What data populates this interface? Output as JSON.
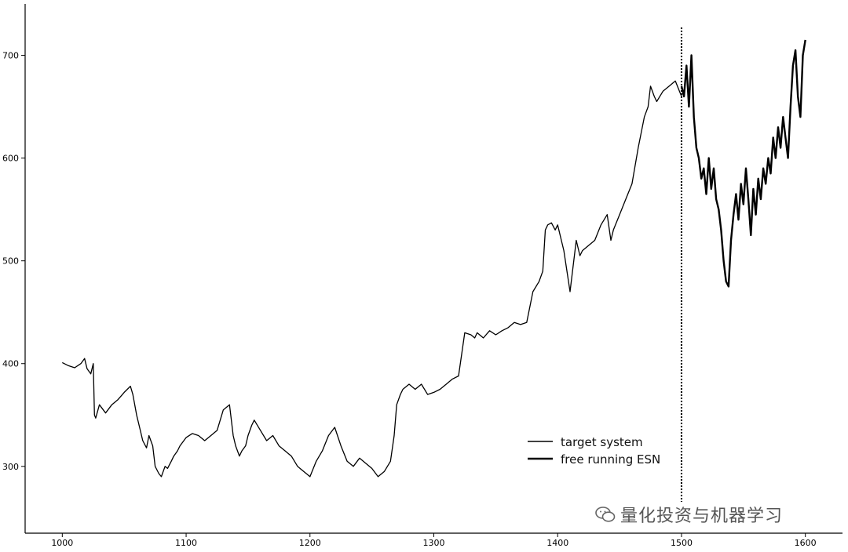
{
  "chart_data": {
    "type": "line",
    "title": "",
    "xlabel": "",
    "ylabel": "",
    "xlim": [
      970,
      1630
    ],
    "ylim": [
      235,
      750
    ],
    "xticks": [
      1000,
      1100,
      1200,
      1300,
      1400,
      1500,
      1600
    ],
    "yticks": [
      300,
      400,
      500,
      600,
      700
    ],
    "vline": {
      "x": 1500,
      "style": "dotted"
    },
    "legend": {
      "position": "bottom-center"
    },
    "series": [
      {
        "name": "target system",
        "x": [
          1000,
          1005,
          1010,
          1015,
          1018,
          1020,
          1023,
          1025,
          1026,
          1027,
          1030,
          1035,
          1040,
          1045,
          1050,
          1055,
          1057,
          1060,
          1063,
          1065,
          1068,
          1070,
          1073,
          1075,
          1078,
          1080,
          1083,
          1085,
          1088,
          1090,
          1093,
          1095,
          1100,
          1105,
          1110,
          1115,
          1120,
          1125,
          1130,
          1135,
          1138,
          1140,
          1143,
          1145,
          1148,
          1150,
          1153,
          1155,
          1160,
          1165,
          1170,
          1175,
          1180,
          1185,
          1190,
          1195,
          1200,
          1205,
          1210,
          1215,
          1220,
          1225,
          1230,
          1235,
          1240,
          1245,
          1250,
          1255,
          1260,
          1265,
          1268,
          1270,
          1273,
          1275,
          1278,
          1280,
          1285,
          1290,
          1295,
          1300,
          1305,
          1310,
          1315,
          1320,
          1325,
          1330,
          1333,
          1335,
          1340,
          1345,
          1350,
          1355,
          1360,
          1365,
          1370,
          1375,
          1380,
          1385,
          1388,
          1390,
          1392,
          1395,
          1398,
          1400,
          1405,
          1410,
          1415,
          1418,
          1420,
          1425,
          1430,
          1435,
          1440,
          1443,
          1445,
          1450,
          1455,
          1460,
          1465,
          1470,
          1473,
          1475,
          1478,
          1480,
          1485,
          1490,
          1495,
          1500
        ],
        "values": [
          401,
          398,
          396,
          400,
          405,
          395,
          390,
          400,
          350,
          347,
          360,
          352,
          360,
          365,
          372,
          378,
          370,
          350,
          335,
          325,
          318,
          330,
          320,
          300,
          293,
          290,
          300,
          298,
          305,
          310,
          315,
          320,
          328,
          332,
          330,
          325,
          330,
          335,
          355,
          360,
          330,
          320,
          310,
          315,
          320,
          330,
          340,
          345,
          335,
          325,
          330,
          320,
          315,
          310,
          300,
          295,
          290,
          305,
          315,
          330,
          338,
          320,
          305,
          300,
          308,
          303,
          298,
          290,
          295,
          305,
          330,
          360,
          370,
          375,
          378,
          380,
          375,
          380,
          370,
          372,
          375,
          380,
          385,
          388,
          430,
          428,
          425,
          430,
          425,
          432,
          428,
          432,
          435,
          440,
          438,
          440,
          470,
          480,
          490,
          530,
          535,
          537,
          530,
          535,
          510,
          470,
          520,
          505,
          510,
          515,
          520,
          535,
          545,
          520,
          530,
          545,
          560,
          575,
          610,
          640,
          650,
          670,
          660,
          655,
          665,
          670,
          675,
          660
        ],
        "color": "#000000"
      },
      {
        "name": "free running ESN",
        "x": [
          1500,
          1502,
          1504,
          1506,
          1508,
          1510,
          1512,
          1514,
          1516,
          1518,
          1520,
          1522,
          1524,
          1526,
          1528,
          1530,
          1532,
          1534,
          1536,
          1538,
          1540,
          1542,
          1544,
          1546,
          1548,
          1550,
          1552,
          1554,
          1556,
          1558,
          1560,
          1562,
          1564,
          1566,
          1568,
          1570,
          1572,
          1574,
          1576,
          1578,
          1580,
          1582,
          1584,
          1586,
          1588,
          1590,
          1592,
          1594,
          1596,
          1598,
          1600
        ],
        "values": [
          670,
          660,
          690,
          650,
          700,
          640,
          610,
          600,
          580,
          590,
          565,
          600,
          570,
          590,
          560,
          550,
          530,
          500,
          480,
          475,
          520,
          545,
          565,
          540,
          575,
          555,
          590,
          560,
          525,
          570,
          545,
          580,
          560,
          590,
          575,
          600,
          585,
          620,
          600,
          630,
          610,
          640,
          620,
          600,
          650,
          690,
          705,
          660,
          640,
          700,
          715
        ],
        "color": "#000000"
      }
    ]
  },
  "legend_items": [
    "target system",
    "free running ESN"
  ],
  "watermark": {
    "text": "量化投资与机器学习",
    "icon": "wechat-icon"
  }
}
